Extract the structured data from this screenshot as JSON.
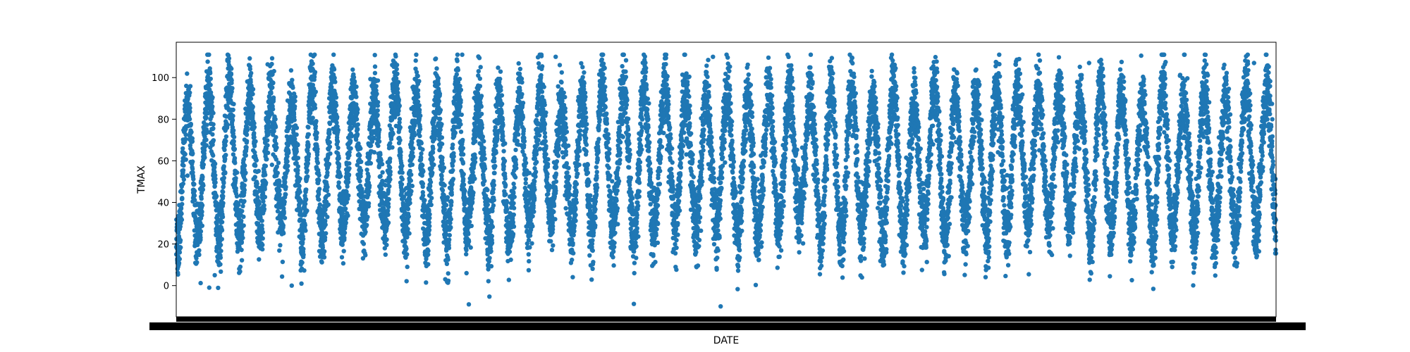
{
  "chart_data": {
    "type": "scatter",
    "title": "",
    "xlabel": "DATE",
    "ylabel": "TMAX",
    "ylim": [
      -15,
      117
    ],
    "yticks": [
      0,
      20,
      40,
      60,
      80,
      100
    ],
    "x_tick_labels_overlapping": true,
    "grid": false,
    "legend": "none",
    "series": [
      {
        "name": "",
        "color": "#1f77b4",
        "seasonal_cycle": {
          "cycles": 53,
          "typical_summer_peak": [
            95,
            106
          ],
          "typical_winter_trough": [
            8,
            22
          ],
          "max_value": 111,
          "min_value": -10
        }
      }
    ]
  }
}
